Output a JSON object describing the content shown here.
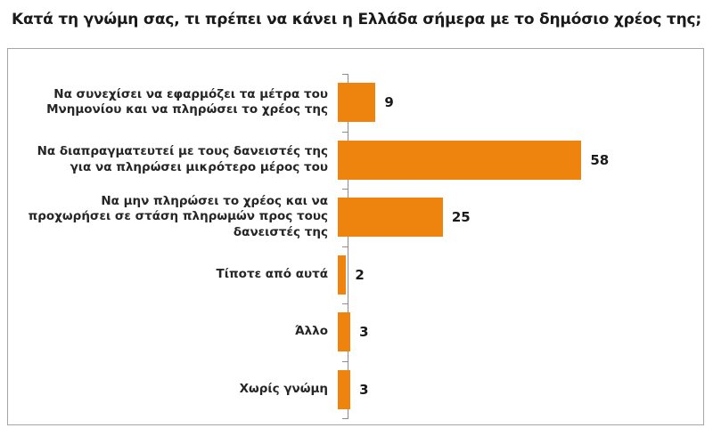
{
  "title": "Κατά τη γνώμη σας, τι πρέπει να κάνει η Ελλάδα σήμερα με το δημόσιο χρέος της;",
  "chart_data": {
    "type": "bar",
    "orientation": "horizontal",
    "title": "Κατά τη γνώμη σας, τι πρέπει να κάνει η Ελλάδα σήμερα με το δημόσιο χρέος της;",
    "categories": [
      "Να συνεχίσει να εφαρμόζει τα μέτρα του Μνημονίου και να πληρώσει το χρέος της",
      "Να διαπραγματευτεί με τους δανειστές της για να πληρώσει μικρότερο μέρος του",
      "Να μην πληρώσει το χρέος και να προχωρήσει σε στάση πληρωμών προς τους δανειστές της",
      "Τίποτε από αυτά",
      "Άλλο",
      "Χωρίς γνώμη"
    ],
    "values": [
      9,
      58,
      25,
      2,
      3,
      3
    ],
    "value_labels": [
      "9",
      "58",
      "25",
      "2",
      "3",
      "3"
    ],
    "xlabel": "",
    "ylabel": "",
    "xlim": [
      0,
      80
    ],
    "grid": false,
    "legend": false,
    "data_labels_shown": true,
    "bar_color": "#ee830e",
    "axis_color": "#8c8c8c",
    "border_color": "#a6a6a6",
    "label_color": "#262626",
    "value_label_color": "#1a1a1a"
  }
}
